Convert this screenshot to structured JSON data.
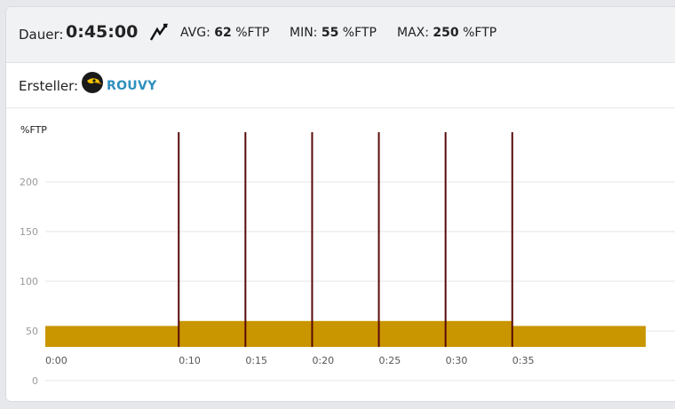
{
  "header": {
    "duration_label": "Dauer:",
    "duration_value": "0:45:00",
    "bolt_icon": "lightning-icon",
    "avg_label": "AVG:",
    "avg_value": "62",
    "avg_unit": "%FTP",
    "min_label": "MIN:",
    "min_value": "55",
    "min_unit": "%FTP",
    "max_label": "MAX:",
    "max_value": "250",
    "max_unit": "%FTP"
  },
  "creator": {
    "label": "Ersteller:",
    "logo_icon": "rouvy-bird-logo",
    "name": "ROUVY"
  },
  "chart_data": {
    "type": "area",
    "ylabel": "%FTP",
    "y_ticks": [
      0,
      50,
      100,
      150,
      200
    ],
    "ylim": [
      0,
      250
    ],
    "x_ticks": [
      "0:00",
      "0:10",
      "0:15",
      "0:20",
      "0:25",
      "0:30",
      "0:35"
    ],
    "xlim_minutes": [
      0,
      45
    ],
    "segments": [
      {
        "start_min": 0,
        "end_min": 10,
        "ftp": 55
      },
      {
        "start_min": 10,
        "end_min": 10,
        "ftp": 250
      },
      {
        "start_min": 10,
        "end_min": 15,
        "ftp": 60
      },
      {
        "start_min": 15,
        "end_min": 15,
        "ftp": 250
      },
      {
        "start_min": 15,
        "end_min": 20,
        "ftp": 60
      },
      {
        "start_min": 20,
        "end_min": 20,
        "ftp": 250
      },
      {
        "start_min": 20,
        "end_min": 25,
        "ftp": 60
      },
      {
        "start_min": 25,
        "end_min": 25,
        "ftp": 250
      },
      {
        "start_min": 25,
        "end_min": 30,
        "ftp": 60
      },
      {
        "start_min": 30,
        "end_min": 30,
        "ftp": 250
      },
      {
        "start_min": 30,
        "end_min": 35,
        "ftp": 60
      },
      {
        "start_min": 35,
        "end_min": 35,
        "ftp": 250
      },
      {
        "start_min": 35,
        "end_min": 45,
        "ftp": 55
      }
    ],
    "grid": true,
    "colors": {
      "block": "#c99600",
      "spike": "#5a0a0a",
      "grid": "#e4e4e4"
    }
  }
}
